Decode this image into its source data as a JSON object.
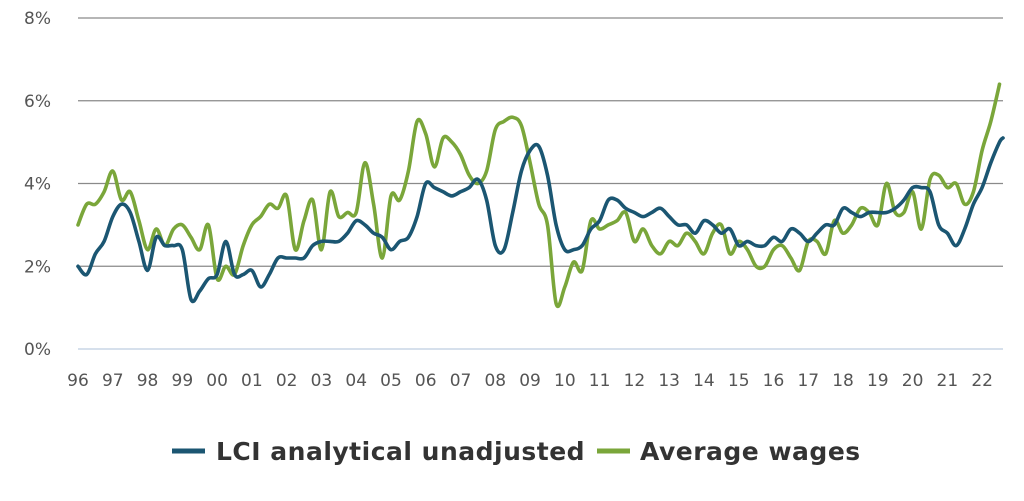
{
  "chart_data": {
    "type": "line",
    "y_unit": "%",
    "ylim": [
      0,
      8
    ],
    "yticks": [
      0,
      2,
      4,
      6,
      8
    ],
    "ytick_labels": [
      "0%",
      "2%",
      "4%",
      "6%",
      "8%"
    ],
    "x_range": [
      1996,
      2022.6
    ],
    "xtick_labels": [
      "96",
      "97",
      "98",
      "99",
      "00",
      "01",
      "02",
      "03",
      "04",
      "05",
      "06",
      "07",
      "08",
      "09",
      "10",
      "11",
      "12",
      "13",
      "14",
      "15",
      "16",
      "17",
      "18",
      "19",
      "20",
      "21",
      "22"
    ],
    "grid": true,
    "legend_position": "bottom",
    "series": [
      {
        "name": "LCI analytical unadjusted",
        "color": "#1b5672",
        "points": [
          [
            1996.0,
            2.0
          ],
          [
            1996.25,
            1.8
          ],
          [
            1996.5,
            2.3
          ],
          [
            1996.75,
            2.6
          ],
          [
            1997.0,
            3.2
          ],
          [
            1997.25,
            3.5
          ],
          [
            1997.5,
            3.3
          ],
          [
            1997.75,
            2.6
          ],
          [
            1998.0,
            1.9
          ],
          [
            1998.25,
            2.7
          ],
          [
            1998.5,
            2.5
          ],
          [
            1998.75,
            2.5
          ],
          [
            1999.0,
            2.4
          ],
          [
            1999.25,
            1.2
          ],
          [
            1999.5,
            1.4
          ],
          [
            1999.75,
            1.7
          ],
          [
            2000.0,
            1.8
          ],
          [
            2000.25,
            2.6
          ],
          [
            2000.5,
            1.8
          ],
          [
            2000.75,
            1.8
          ],
          [
            2001.0,
            1.9
          ],
          [
            2001.25,
            1.5
          ],
          [
            2001.5,
            1.8
          ],
          [
            2001.75,
            2.2
          ],
          [
            2002.0,
            2.2
          ],
          [
            2002.25,
            2.2
          ],
          [
            2002.5,
            2.2
          ],
          [
            2002.75,
            2.5
          ],
          [
            2003.0,
            2.6
          ],
          [
            2003.25,
            2.6
          ],
          [
            2003.5,
            2.6
          ],
          [
            2003.75,
            2.8
          ],
          [
            2004.0,
            3.1
          ],
          [
            2004.25,
            3.0
          ],
          [
            2004.5,
            2.8
          ],
          [
            2004.75,
            2.7
          ],
          [
            2005.0,
            2.4
          ],
          [
            2005.25,
            2.6
          ],
          [
            2005.5,
            2.7
          ],
          [
            2005.75,
            3.2
          ],
          [
            2006.0,
            4.0
          ],
          [
            2006.25,
            3.9
          ],
          [
            2006.5,
            3.8
          ],
          [
            2006.75,
            3.7
          ],
          [
            2007.0,
            3.8
          ],
          [
            2007.25,
            3.9
          ],
          [
            2007.5,
            4.1
          ],
          [
            2007.75,
            3.6
          ],
          [
            2008.0,
            2.5
          ],
          [
            2008.25,
            2.4
          ],
          [
            2008.5,
            3.3
          ],
          [
            2008.75,
            4.3
          ],
          [
            2009.0,
            4.8
          ],
          [
            2009.25,
            4.9
          ],
          [
            2009.5,
            4.2
          ],
          [
            2009.75,
            3.0
          ],
          [
            2010.0,
            2.4
          ],
          [
            2010.25,
            2.4
          ],
          [
            2010.5,
            2.5
          ],
          [
            2010.75,
            2.9
          ],
          [
            2011.0,
            3.1
          ],
          [
            2011.25,
            3.6
          ],
          [
            2011.5,
            3.6
          ],
          [
            2011.75,
            3.4
          ],
          [
            2012.0,
            3.3
          ],
          [
            2012.25,
            3.2
          ],
          [
            2012.5,
            3.3
          ],
          [
            2012.75,
            3.4
          ],
          [
            2013.0,
            3.2
          ],
          [
            2013.25,
            3.0
          ],
          [
            2013.5,
            3.0
          ],
          [
            2013.75,
            2.8
          ],
          [
            2014.0,
            3.1
          ],
          [
            2014.25,
            3.0
          ],
          [
            2014.5,
            2.8
          ],
          [
            2014.75,
            2.9
          ],
          [
            2015.0,
            2.5
          ],
          [
            2015.25,
            2.6
          ],
          [
            2015.5,
            2.5
          ],
          [
            2015.75,
            2.5
          ],
          [
            2016.0,
            2.7
          ],
          [
            2016.25,
            2.6
          ],
          [
            2016.5,
            2.9
          ],
          [
            2016.75,
            2.8
          ],
          [
            2017.0,
            2.6
          ],
          [
            2017.25,
            2.8
          ],
          [
            2017.5,
            3.0
          ],
          [
            2017.75,
            3.0
          ],
          [
            2018.0,
            3.4
          ],
          [
            2018.25,
            3.3
          ],
          [
            2018.5,
            3.2
          ],
          [
            2018.75,
            3.3
          ],
          [
            2019.0,
            3.3
          ],
          [
            2019.25,
            3.3
          ],
          [
            2019.5,
            3.4
          ],
          [
            2019.75,
            3.6
          ],
          [
            2020.0,
            3.9
          ],
          [
            2020.25,
            3.9
          ],
          [
            2020.5,
            3.8
          ],
          [
            2020.75,
            3.0
          ],
          [
            2021.0,
            2.8
          ],
          [
            2021.25,
            2.5
          ],
          [
            2021.5,
            2.9
          ],
          [
            2021.75,
            3.5
          ],
          [
            2022.0,
            3.9
          ],
          [
            2022.25,
            4.5
          ],
          [
            2022.5,
            5.0
          ],
          [
            2022.6,
            5.1
          ]
        ]
      },
      {
        "name": "Average wages",
        "color": "#7aa63a",
        "points": [
          [
            1996.0,
            3.0
          ],
          [
            1996.25,
            3.5
          ],
          [
            1996.5,
            3.5
          ],
          [
            1996.75,
            3.8
          ],
          [
            1997.0,
            4.3
          ],
          [
            1997.25,
            3.6
          ],
          [
            1997.5,
            3.8
          ],
          [
            1997.75,
            3.1
          ],
          [
            1998.0,
            2.4
          ],
          [
            1998.25,
            2.9
          ],
          [
            1998.5,
            2.5
          ],
          [
            1998.75,
            2.9
          ],
          [
            1999.0,
            3.0
          ],
          [
            1999.25,
            2.7
          ],
          [
            1999.5,
            2.4
          ],
          [
            1999.75,
            3.0
          ],
          [
            2000.0,
            1.7
          ],
          [
            2000.25,
            2.0
          ],
          [
            2000.5,
            1.8
          ],
          [
            2000.75,
            2.5
          ],
          [
            2001.0,
            3.0
          ],
          [
            2001.25,
            3.2
          ],
          [
            2001.5,
            3.5
          ],
          [
            2001.75,
            3.4
          ],
          [
            2002.0,
            3.7
          ],
          [
            2002.25,
            2.4
          ],
          [
            2002.5,
            3.1
          ],
          [
            2002.75,
            3.6
          ],
          [
            2003.0,
            2.4
          ],
          [
            2003.25,
            3.8
          ],
          [
            2003.5,
            3.2
          ],
          [
            2003.75,
            3.3
          ],
          [
            2004.0,
            3.3
          ],
          [
            2004.25,
            4.5
          ],
          [
            2004.5,
            3.5
          ],
          [
            2004.75,
            2.2
          ],
          [
            2005.0,
            3.7
          ],
          [
            2005.25,
            3.6
          ],
          [
            2005.5,
            4.3
          ],
          [
            2005.75,
            5.5
          ],
          [
            2006.0,
            5.2
          ],
          [
            2006.25,
            4.4
          ],
          [
            2006.5,
            5.1
          ],
          [
            2006.75,
            5.0
          ],
          [
            2007.0,
            4.7
          ],
          [
            2007.25,
            4.2
          ],
          [
            2007.5,
            4.0
          ],
          [
            2007.75,
            4.3
          ],
          [
            2008.0,
            5.3
          ],
          [
            2008.25,
            5.5
          ],
          [
            2008.5,
            5.6
          ],
          [
            2008.75,
            5.4
          ],
          [
            2009.0,
            4.5
          ],
          [
            2009.25,
            3.5
          ],
          [
            2009.5,
            3.0
          ],
          [
            2009.75,
            1.1
          ],
          [
            2010.0,
            1.5
          ],
          [
            2010.25,
            2.1
          ],
          [
            2010.5,
            1.9
          ],
          [
            2010.75,
            3.1
          ],
          [
            2011.0,
            2.9
          ],
          [
            2011.25,
            3.0
          ],
          [
            2011.5,
            3.1
          ],
          [
            2011.75,
            3.3
          ],
          [
            2012.0,
            2.6
          ],
          [
            2012.25,
            2.9
          ],
          [
            2012.5,
            2.5
          ],
          [
            2012.75,
            2.3
          ],
          [
            2013.0,
            2.6
          ],
          [
            2013.25,
            2.5
          ],
          [
            2013.5,
            2.8
          ],
          [
            2013.75,
            2.6
          ],
          [
            2014.0,
            2.3
          ],
          [
            2014.25,
            2.8
          ],
          [
            2014.5,
            3.0
          ],
          [
            2014.75,
            2.3
          ],
          [
            2015.0,
            2.6
          ],
          [
            2015.25,
            2.4
          ],
          [
            2015.5,
            2.0
          ],
          [
            2015.75,
            2.0
          ],
          [
            2016.0,
            2.4
          ],
          [
            2016.25,
            2.5
          ],
          [
            2016.5,
            2.2
          ],
          [
            2016.75,
            1.9
          ],
          [
            2017.0,
            2.6
          ],
          [
            2017.25,
            2.6
          ],
          [
            2017.5,
            2.3
          ],
          [
            2017.75,
            3.1
          ],
          [
            2018.0,
            2.8
          ],
          [
            2018.25,
            3.0
          ],
          [
            2018.5,
            3.4
          ],
          [
            2018.75,
            3.3
          ],
          [
            2019.0,
            3.0
          ],
          [
            2019.25,
            4.0
          ],
          [
            2019.5,
            3.3
          ],
          [
            2019.75,
            3.3
          ],
          [
            2020.0,
            3.8
          ],
          [
            2020.25,
            2.9
          ],
          [
            2020.5,
            4.1
          ],
          [
            2020.75,
            4.2
          ],
          [
            2021.0,
            3.9
          ],
          [
            2021.25,
            4.0
          ],
          [
            2021.5,
            3.5
          ],
          [
            2021.75,
            3.8
          ],
          [
            2022.0,
            4.8
          ],
          [
            2022.25,
            5.5
          ],
          [
            2022.5,
            6.4
          ]
        ]
      }
    ]
  }
}
